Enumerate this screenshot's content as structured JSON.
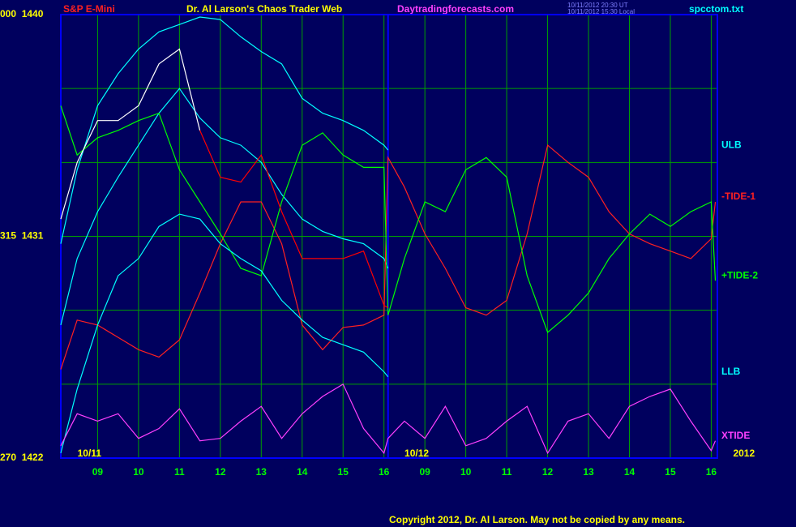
{
  "chart_data": {
    "type": "line",
    "title": "Dr. Al Larson's Chaos Trader Web",
    "symbol": "S&P E-Mini",
    "website": "Daytradingforecasts.com",
    "timestamps": [
      "10/11/2012 20:30 UT",
      "10/11/2012 15:30 Local"
    ],
    "file_name": "spcctom.txt",
    "copyright": "Copyright 2012, Dr. Al Larson. May not be copied by any means.",
    "date_labels": [
      {
        "value": -0.2,
        "label": "10/11"
      },
      {
        "value": 7.8,
        "label": "10/12"
      },
      {
        "value": 15.8,
        "label": "2012"
      }
    ],
    "x": [
      -0.9,
      -0.5,
      0,
      0.5,
      1,
      1.5,
      2,
      2.5,
      3,
      3.5,
      4,
      4.5,
      5,
      5.5,
      6,
      6.5,
      7,
      7.1,
      7.5,
      8,
      8.5,
      9,
      9.5,
      10,
      10.5,
      11,
      11.5,
      12,
      12.5,
      13,
      13.5,
      14,
      14.5,
      15,
      15.1
    ],
    "xlim": [
      -0.9,
      15.15
    ],
    "xticks": [
      {
        "value": 0,
        "label": "09"
      },
      {
        "value": 1,
        "label": "10"
      },
      {
        "value": 2,
        "label": "11"
      },
      {
        "value": 3,
        "label": "12"
      },
      {
        "value": 4,
        "label": "13"
      },
      {
        "value": 5,
        "label": "14"
      },
      {
        "value": 6,
        "label": "15"
      },
      {
        "value": 7,
        "label": "16"
      },
      {
        "value": 8,
        "label": "09"
      },
      {
        "value": 9,
        "label": "10"
      },
      {
        "value": 10,
        "label": "11"
      },
      {
        "value": 11,
        "label": "12"
      },
      {
        "value": 12,
        "label": "13"
      },
      {
        "value": 13,
        "label": "14"
      },
      {
        "value": 14,
        "label": "15"
      },
      {
        "value": 15,
        "label": "16"
      }
    ],
    "day_divider": 7.1,
    "ylim": [
      1422,
      1440
    ],
    "yticks": [
      {
        "value": 1440,
        "label": "000  1440"
      },
      {
        "value": 1431,
        "label": "315  1431"
      },
      {
        "value": 1422,
        "label": "270  1422"
      }
    ],
    "grid_y": [
      1437,
      1434,
      1431,
      1428,
      1425
    ],
    "grid": true,
    "series": [
      {
        "color": "#00ffff",
        "values": [
          1427.4,
          1430.1,
          1432.0,
          1433.4,
          1434.7,
          1436.0,
          1437.0,
          1435.8,
          1435.0,
          1434.7,
          1434.0,
          1432.7,
          1431.7,
          1431.2,
          1430.9,
          1430.7,
          1430.1,
          1429.7,
          null,
          null,
          null,
          null,
          null,
          null,
          null,
          null,
          null,
          null,
          null,
          null,
          null,
          null,
          null,
          null,
          null
        ]
      },
      {
        "name": "ULB",
        "color": "#00ffff",
        "values": [
          1430.7,
          1433.7,
          1436.3,
          1437.6,
          1438.6,
          1439.3,
          1439.6,
          1439.9,
          1439.8,
          1439.1,
          1438.5,
          1438.0,
          1436.6,
          1436.0,
          1435.7,
          1435.3,
          1434.7,
          1434.5,
          null,
          null,
          null,
          null,
          null,
          null,
          null,
          null,
          null,
          null,
          null,
          null,
          null,
          null,
          null,
          null,
          null
        ]
      },
      {
        "name": "-TIDE-1",
        "color": "#ff2020",
        "values": [
          1425.6,
          1427.6,
          1427.4,
          1426.9,
          1426.4,
          1426.1,
          1426.8,
          1428.7,
          1430.7,
          1432.4,
          1432.4,
          1430.7,
          1427.4,
          1426.4,
          1427.3,
          1427.4,
          1427.8,
          1434.2,
          1433.0,
          1431.1,
          1429.7,
          1428.1,
          1427.8,
          1428.4,
          1431.1,
          1434.7,
          1434.0,
          1433.4,
          1432.0,
          1431.1,
          1430.7,
          1430.4,
          1430.1,
          1430.9,
          1432.4
        ]
      },
      {
        "name": "+TIDE-2",
        "color": "#00ff00",
        "values": [
          1436.3,
          1434.3,
          1435.0,
          1435.3,
          1435.7,
          1436.0,
          1433.7,
          1432.4,
          1431.1,
          1429.7,
          1429.4,
          1432.4,
          1434.7,
          1435.2,
          1434.3,
          1433.8,
          1433.8,
          1427.8,
          1430.1,
          1432.4,
          1432.0,
          1433.7,
          1434.2,
          1433.4,
          1429.4,
          1427.1,
          1427.8,
          1428.7,
          1430.1,
          1431.1,
          1431.9,
          1431.4,
          1432.0,
          1432.4,
          1429.2
        ]
      },
      {
        "name": "LLB",
        "color": "#00ffff",
        "values": [
          1422.2,
          1424.8,
          1427.4,
          1429.4,
          1430.1,
          1431.4,
          1431.9,
          1431.7,
          1430.7,
          1430.1,
          1429.6,
          1428.4,
          1427.6,
          1426.9,
          1426.6,
          1426.3,
          1425.5,
          1425.3,
          null,
          null,
          null,
          null,
          null,
          null,
          null,
          null,
          null,
          null,
          null,
          null,
          null,
          null,
          null,
          null,
          null
        ]
      },
      {
        "name": "XTIDE",
        "color": "#ff40ff",
        "values": [
          1422.5,
          1423.8,
          1423.5,
          1423.8,
          1422.8,
          1423.2,
          1424.0,
          1422.7,
          1422.8,
          1423.5,
          1424.1,
          1422.8,
          1423.8,
          1424.5,
          1425.0,
          1423.2,
          1422.2,
          1422.8,
          1423.5,
          1422.8,
          1424.1,
          1422.5,
          1422.8,
          1423.5,
          1424.1,
          1422.2,
          1423.5,
          1423.8,
          1422.8,
          1424.1,
          1424.5,
          1424.8,
          1423.5,
          1422.3,
          1422.7
        ]
      },
      {
        "color": "#ffffff",
        "values": [
          1431.7,
          1434.0,
          1435.7,
          1435.7,
          1436.3,
          1438.0,
          1438.6,
          1435.3,
          null,
          null,
          null,
          null,
          null,
          null,
          null,
          null,
          null,
          null,
          null,
          null,
          null,
          null,
          null,
          null,
          null,
          null,
          null,
          null,
          null,
          null,
          null,
          null,
          null,
          null,
          null
        ]
      },
      {
        "color": "#ff0000",
        "values": [
          null,
          null,
          null,
          null,
          null,
          null,
          null,
          1435.3,
          1433.4,
          1433.2,
          1434.3,
          1432.0,
          1430.1,
          1430.1,
          1430.1,
          1430.4,
          1428.2,
          1428.1,
          null,
          null,
          null,
          null,
          null,
          null,
          null,
          null,
          null,
          null,
          null,
          null,
          null,
          null,
          null,
          null,
          null
        ]
      }
    ]
  }
}
